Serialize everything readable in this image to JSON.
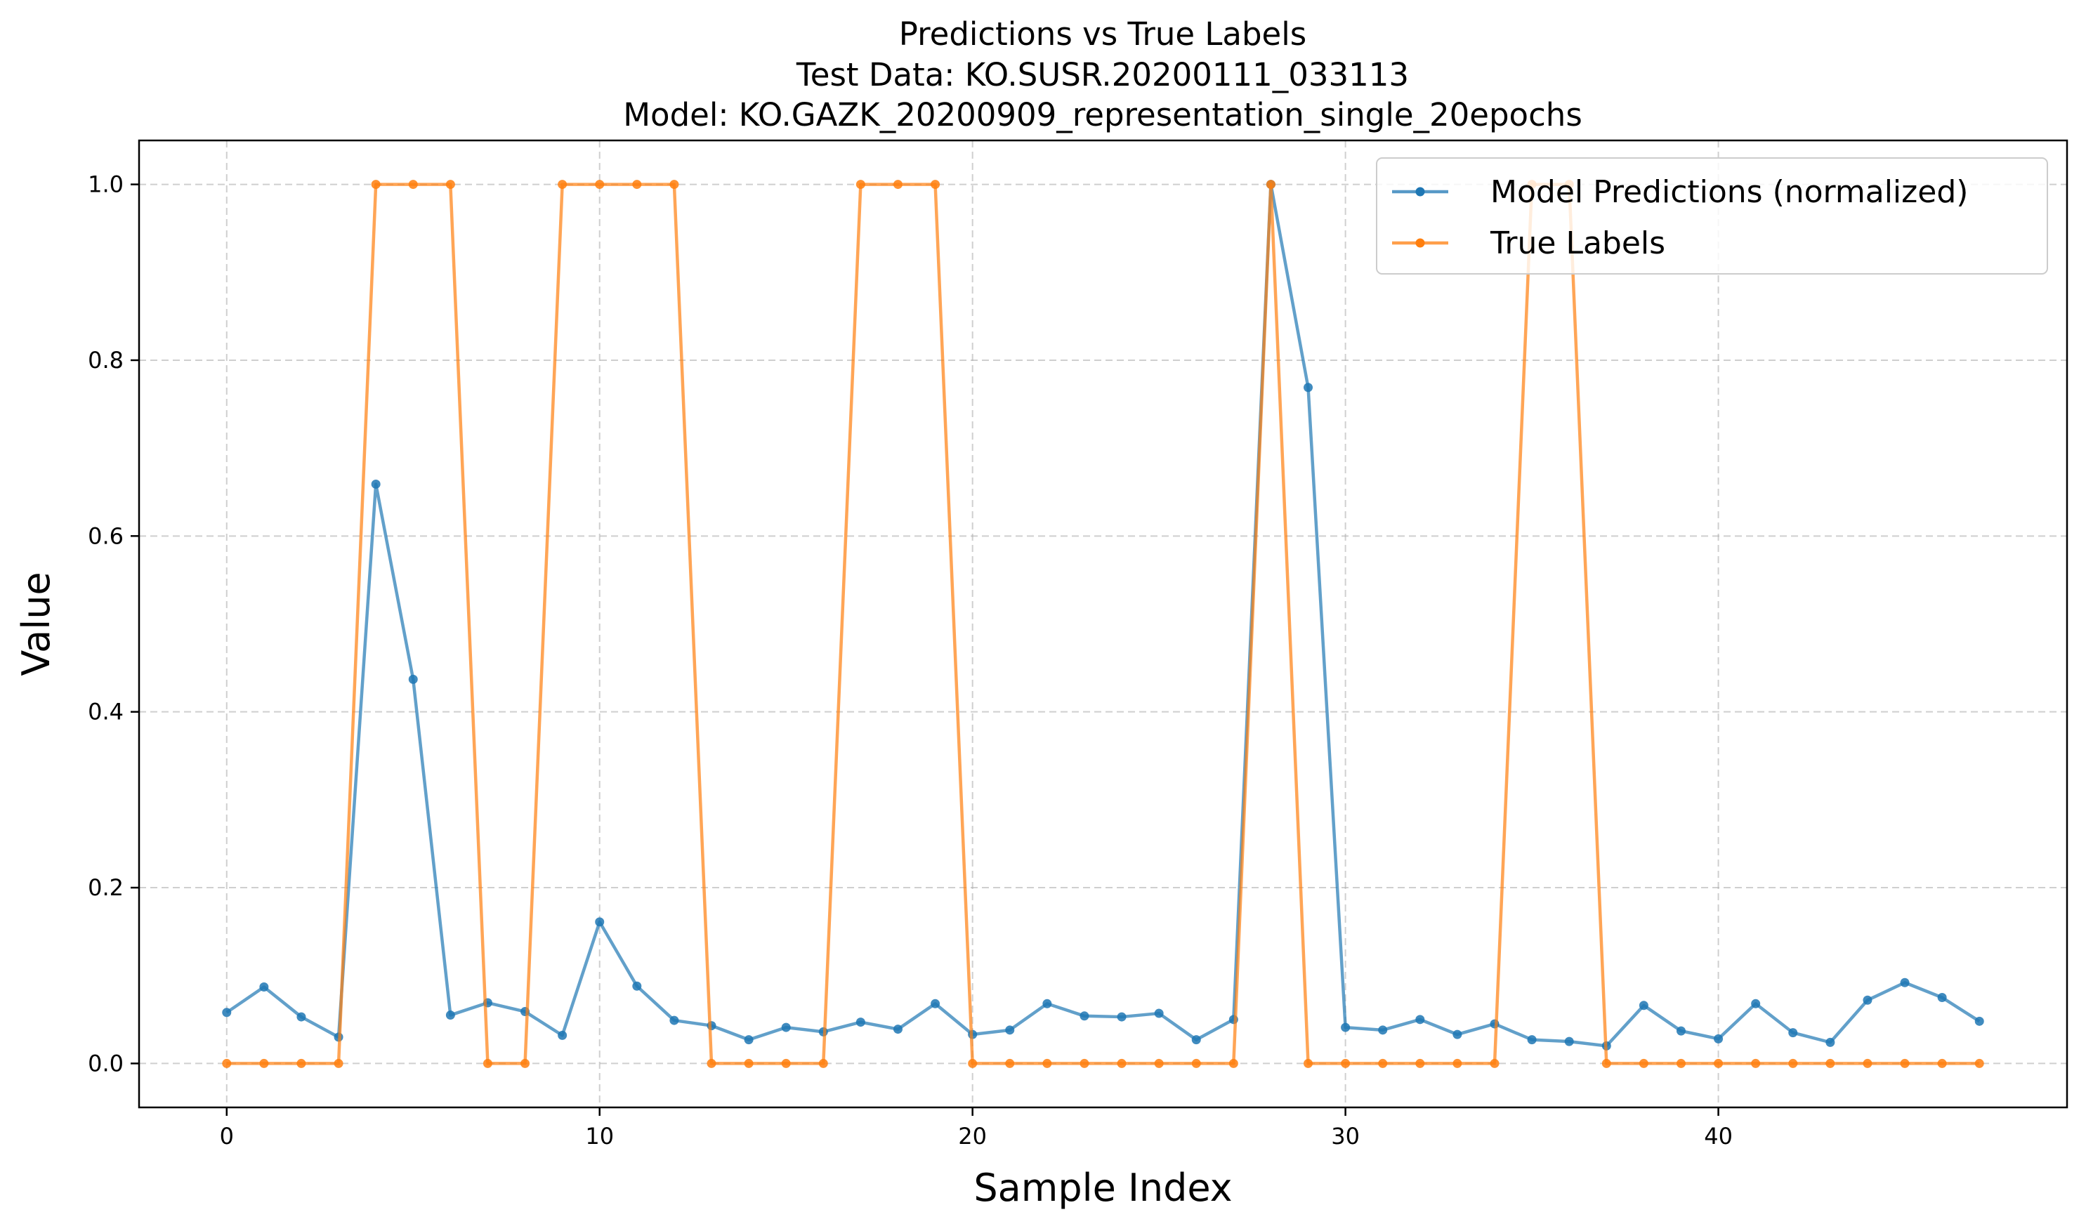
{
  "chart_data": {
    "type": "line",
    "title": [
      "Predictions vs True Labels",
      "Test Data: KO.SUSR.20200111_033113",
      "Model: KO.GAZK_20200909_representation_single_20epochs"
    ],
    "xlabel": "Sample Index",
    "ylabel": "Value",
    "xlim": [
      -2.35,
      49.35
    ],
    "ylim": [
      -0.05,
      1.05
    ],
    "xticks": [
      0,
      10,
      20,
      30,
      40
    ],
    "yticks": [
      0.0,
      0.2,
      0.4,
      0.6,
      0.8,
      1.0
    ],
    "ytick_labels": [
      "0.0",
      "0.2",
      "0.4",
      "0.6",
      "0.8",
      "1.0"
    ],
    "grid": true,
    "legend_position": "top-right",
    "series": [
      {
        "name": "Model Predictions (normalized)",
        "color": "#1f77b4",
        "values": [
          0.058,
          0.087,
          0.053,
          0.03,
          0.659,
          0.437,
          0.055,
          0.069,
          0.059,
          0.032,
          0.161,
          0.088,
          0.049,
          0.043,
          0.027,
          0.041,
          0.036,
          0.047,
          0.039,
          0.068,
          0.033,
          0.038,
          0.068,
          0.054,
          0.053,
          0.057,
          0.027,
          0.05,
          1.0,
          0.769,
          0.041,
          0.038,
          0.05,
          0.033,
          0.045,
          0.027,
          0.025,
          0.02,
          0.066,
          0.037,
          0.028,
          0.068,
          0.035,
          0.024,
          0.072,
          0.092,
          0.075,
          0.048
        ]
      },
      {
        "name": "True Labels",
        "color": "#ff7f0e",
        "values": [
          0,
          0,
          0,
          0,
          1,
          1,
          1,
          0,
          0,
          1,
          1,
          1,
          1,
          0,
          0,
          0,
          0,
          1,
          1,
          1,
          0,
          0,
          0,
          0,
          0,
          0,
          0,
          0,
          1,
          0,
          0,
          0,
          0,
          0,
          0,
          1,
          1,
          0,
          0,
          0,
          0,
          0,
          0,
          0,
          0,
          0,
          0,
          0
        ]
      }
    ]
  }
}
